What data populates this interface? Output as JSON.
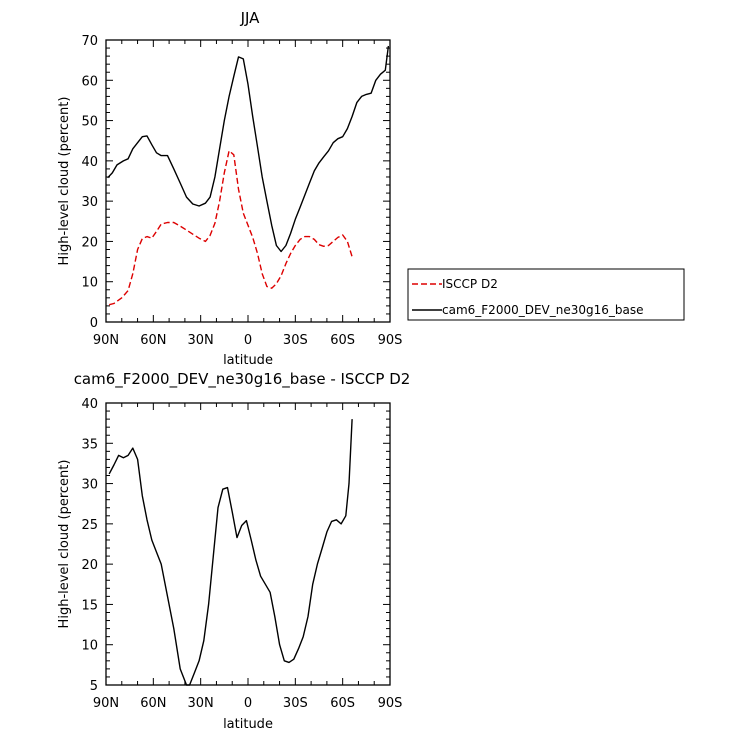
{
  "chart_data": [
    {
      "type": "line",
      "title": "JJA",
      "xlabel": "latitude",
      "ylabel": "High-level cloud (percent)",
      "xlim": [
        -90,
        90
      ],
      "ylim": [
        0,
        70
      ],
      "xticks": [
        -90,
        -60,
        -30,
        0,
        30,
        60,
        90
      ],
      "xtick_labels": [
        "90N",
        "60N",
        "30N",
        "0",
        "30S",
        "60S",
        "90S"
      ],
      "yticks": [
        0,
        10,
        20,
        30,
        40,
        50,
        60,
        70
      ],
      "ytick_labels": [
        "0",
        "10",
        "20",
        "30",
        "40",
        "50",
        "60",
        "70"
      ],
      "legend_position": "right",
      "series": [
        {
          "name": "ISCCP D2",
          "color": "#dd0000",
          "dash": true,
          "x": [
            -88,
            -85,
            -80,
            -76,
            -73,
            -70,
            -67,
            -64,
            -61,
            -58,
            -55,
            -51,
            -47,
            -43,
            -39,
            -35,
            -31,
            -27,
            -24,
            -21,
            -18,
            -15,
            -12,
            -9,
            -6,
            -3,
            0,
            3,
            6,
            9,
            12,
            15,
            18,
            21,
            24,
            27,
            30,
            33,
            36,
            39,
            42,
            45,
            48,
            51,
            54,
            57,
            60,
            63,
            66
          ],
          "values": [
            4.3,
            4.6,
            6.0,
            7.8,
            12.0,
            18.0,
            20.7,
            21.2,
            20.8,
            22.5,
            24.3,
            24.7,
            24.7,
            23.8,
            22.8,
            21.8,
            20.8,
            20.0,
            21.5,
            24.5,
            30.0,
            37.0,
            42.5,
            41.5,
            33.0,
            27.0,
            24.0,
            21.0,
            17.0,
            12.0,
            8.8,
            8.4,
            9.5,
            11.5,
            14.5,
            17.0,
            19.0,
            20.5,
            21.2,
            21.2,
            20.5,
            19.2,
            18.8,
            19.0,
            20.0,
            21.0,
            21.6,
            20.0,
            16.2
          ]
        },
        {
          "name": "cam6_F2000_DEV_ne30g16_base",
          "color": "#000000",
          "dash": false,
          "x": [
            -89,
            -86,
            -83,
            -79,
            -76,
            -73,
            -70,
            -67,
            -64,
            -61,
            -58,
            -55,
            -51,
            -47,
            -43,
            -39,
            -35,
            -31,
            -27,
            -24,
            -21,
            -18,
            -15,
            -12,
            -9,
            -6,
            -3,
            0,
            3,
            6,
            9,
            12,
            15,
            18,
            21,
            24,
            27,
            30,
            33,
            36,
            39,
            42,
            45,
            48,
            51,
            54,
            57,
            60,
            63,
            66,
            69,
            72,
            75,
            78,
            81,
            84,
            87,
            89
          ],
          "values": [
            35.8,
            37.0,
            39.0,
            40.0,
            40.5,
            43.0,
            44.5,
            46.0,
            46.2,
            44.0,
            42.0,
            41.3,
            41.3,
            38.0,
            34.5,
            31.0,
            29.3,
            28.8,
            29.5,
            31.0,
            36.0,
            43.0,
            50.0,
            56.0,
            61.0,
            65.8,
            65.3,
            59.0,
            51.0,
            43.5,
            36.0,
            30.0,
            24.0,
            19.0,
            17.5,
            19.0,
            22.0,
            25.5,
            28.5,
            31.5,
            34.5,
            37.5,
            39.5,
            41.0,
            42.5,
            44.5,
            45.5,
            46.0,
            48.0,
            51.0,
            54.5,
            56.0,
            56.5,
            56.8,
            60.0,
            61.5,
            62.5,
            68.5
          ]
        }
      ]
    },
    {
      "type": "line",
      "title": "cam6_F2000_DEV_ne30g16_base - ISCCP D2",
      "xlabel": "latitude",
      "ylabel": "High-level cloud (percent)",
      "xlim": [
        -90,
        90
      ],
      "ylim": [
        5,
        40
      ],
      "xticks": [
        -90,
        -60,
        -30,
        0,
        30,
        60,
        90
      ],
      "xtick_labels": [
        "90N",
        "60N",
        "30N",
        "0",
        "30S",
        "60S",
        "90S"
      ],
      "yticks": [
        5,
        10,
        15,
        20,
        25,
        30,
        35,
        40
      ],
      "ytick_labels": [
        "5",
        "10",
        "15",
        "20",
        "25",
        "30",
        "35",
        "40"
      ],
      "series": [
        {
          "color": "#000000",
          "dash": false,
          "x": [
            -88,
            -85,
            -82,
            -79,
            -76,
            -73,
            -70,
            -67,
            -64,
            -61,
            -58,
            -55,
            -51,
            -47,
            -43,
            -39,
            -37,
            -34,
            -31,
            -28,
            -25,
            -22,
            -19,
            -16,
            -13,
            -10,
            -7,
            -4,
            -1,
            2,
            5,
            8,
            11,
            14,
            17,
            20,
            23,
            26,
            29,
            32,
            35,
            38,
            41,
            44,
            47,
            50,
            53,
            56,
            59,
            62,
            64,
            66
          ],
          "values": [
            31.2,
            32.3,
            33.5,
            33.2,
            33.5,
            34.4,
            33.0,
            28.5,
            25.5,
            23.0,
            21.5,
            20.0,
            16.0,
            12.0,
            7.0,
            5.0,
            5.0,
            6.5,
            8.0,
            10.5,
            15.0,
            21.0,
            27.0,
            29.3,
            29.5,
            26.5,
            23.3,
            24.8,
            25.4,
            23.0,
            20.5,
            18.5,
            17.5,
            16.5,
            13.5,
            10.0,
            8.0,
            7.8,
            8.2,
            9.5,
            11.0,
            13.5,
            17.5,
            20.0,
            22.0,
            24.0,
            25.3,
            25.5,
            25.0,
            26.0,
            30.0,
            38.0
          ]
        }
      ]
    }
  ]
}
